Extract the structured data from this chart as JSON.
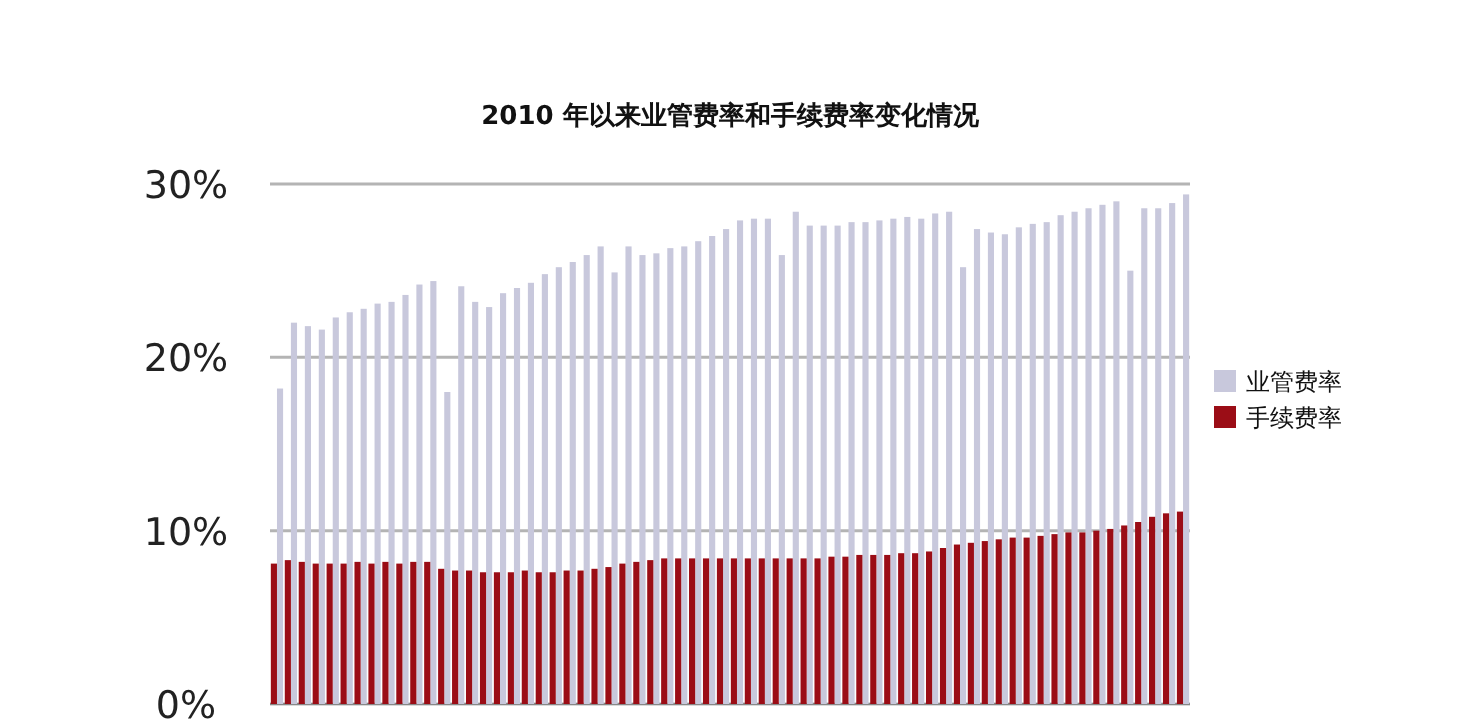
{
  "chart_data": {
    "type": "bar",
    "title": "2010 年以来业管费率和手续费率变化情况",
    "categories": [
      null,
      null,
      null,
      null,
      null,
      null,
      null,
      null,
      null,
      null,
      null,
      null,
      null,
      null,
      null,
      null,
      null,
      null,
      null,
      null,
      null,
      null,
      null,
      null,
      null,
      null,
      null,
      null,
      null,
      null,
      null,
      null,
      null,
      null,
      null,
      null,
      null,
      null,
      null,
      null,
      null,
      null,
      null,
      null,
      null,
      null,
      null,
      null,
      null,
      null,
      null,
      null,
      null,
      null,
      null,
      null,
      null,
      null,
      null,
      null,
      null,
      null,
      null,
      null,
      null,
      null
    ],
    "series": [
      {
        "name": "业管费率",
        "color": "#c8c8dc",
        "values": [
          18.2,
          22.0,
          21.8,
          21.6,
          22.3,
          22.6,
          22.8,
          23.1,
          23.2,
          23.6,
          24.2,
          24.4,
          18.0,
          24.1,
          23.2,
          22.9,
          23.7,
          24.0,
          24.3,
          24.8,
          25.2,
          25.5,
          25.9,
          26.4,
          24.9,
          26.4,
          25.9,
          26.0,
          26.3,
          26.4,
          26.7,
          27.0,
          27.4,
          27.9,
          28.0,
          28.0,
          25.9,
          28.4,
          27.6,
          27.6,
          27.6,
          27.8,
          27.8,
          27.9,
          28.0,
          28.1,
          28.0,
          28.3,
          28.4,
          25.2,
          27.4,
          27.2,
          27.1,
          27.5,
          27.7,
          27.8,
          28.2,
          28.4,
          28.6,
          28.8,
          29.0,
          25.0,
          28.6,
          28.6,
          28.9,
          29.4
        ]
      },
      {
        "name": "手续费率",
        "color": "#9b0d16",
        "values": [
          8.1,
          8.3,
          8.2,
          8.1,
          8.1,
          8.1,
          8.2,
          8.1,
          8.2,
          8.1,
          8.2,
          8.2,
          7.8,
          7.7,
          7.7,
          7.6,
          7.6,
          7.6,
          7.7,
          7.6,
          7.6,
          7.7,
          7.7,
          7.8,
          7.9,
          8.1,
          8.2,
          8.3,
          8.4,
          8.4,
          8.4,
          8.4,
          8.4,
          8.4,
          8.4,
          8.4,
          8.4,
          8.4,
          8.4,
          8.4,
          8.5,
          8.5,
          8.6,
          8.6,
          8.6,
          8.7,
          8.7,
          8.8,
          9.0,
          9.2,
          9.3,
          9.4,
          9.5,
          9.6,
          9.6,
          9.7,
          9.8,
          9.9,
          9.9,
          10.0,
          10.1,
          10.3,
          10.5,
          10.8,
          11.0,
          11.1
        ]
      }
    ],
    "ylim": [
      0,
      30
    ],
    "yticks": [
      {
        "value": 0,
        "label": "0%"
      },
      {
        "value": 10,
        "label": "10%"
      },
      {
        "value": 20,
        "label": "20%"
      },
      {
        "value": 30,
        "label": "30%"
      }
    ],
    "grid": "y",
    "legend": "right"
  }
}
